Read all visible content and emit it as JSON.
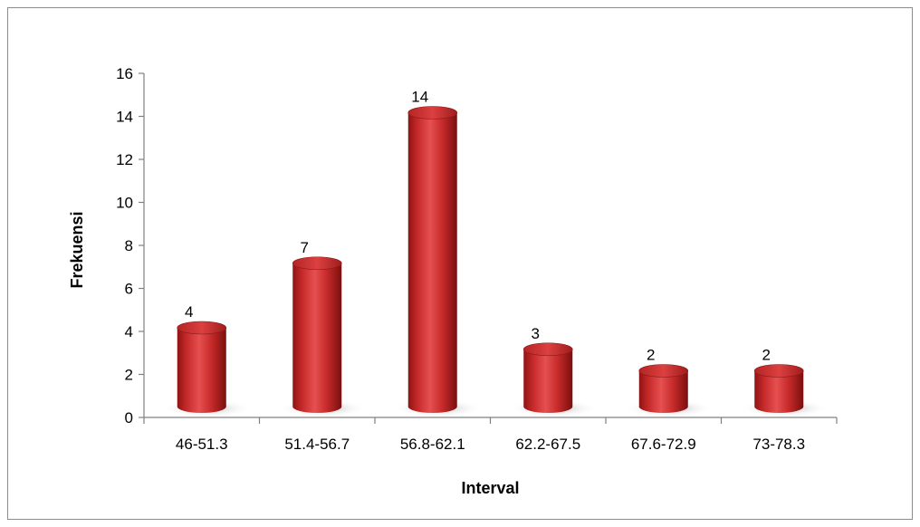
{
  "chart_data": {
    "type": "bar",
    "style": "3d-cylinder",
    "categories": [
      "46-51.3",
      "51.4-56.7",
      "56.8-62.1",
      "62.2-67.5",
      "67.6-72.9",
      "73-78.3"
    ],
    "values": [
      4,
      7,
      14,
      3,
      2,
      2
    ],
    "data_labels": [
      "4",
      "7",
      "14",
      "3",
      "2",
      "2"
    ],
    "title": "",
    "xlabel": "Interval",
    "ylabel": "Frekuensi",
    "ylim": [
      0,
      16
    ],
    "yticks": [
      0,
      2,
      4,
      6,
      8,
      10,
      12,
      14,
      16
    ],
    "ytick_labels": [
      "0",
      "2",
      "4",
      "6",
      "8",
      "10",
      "12",
      "14",
      "16"
    ],
    "grid": false,
    "legend": "none",
    "bar_color": "#cc2a2a"
  }
}
